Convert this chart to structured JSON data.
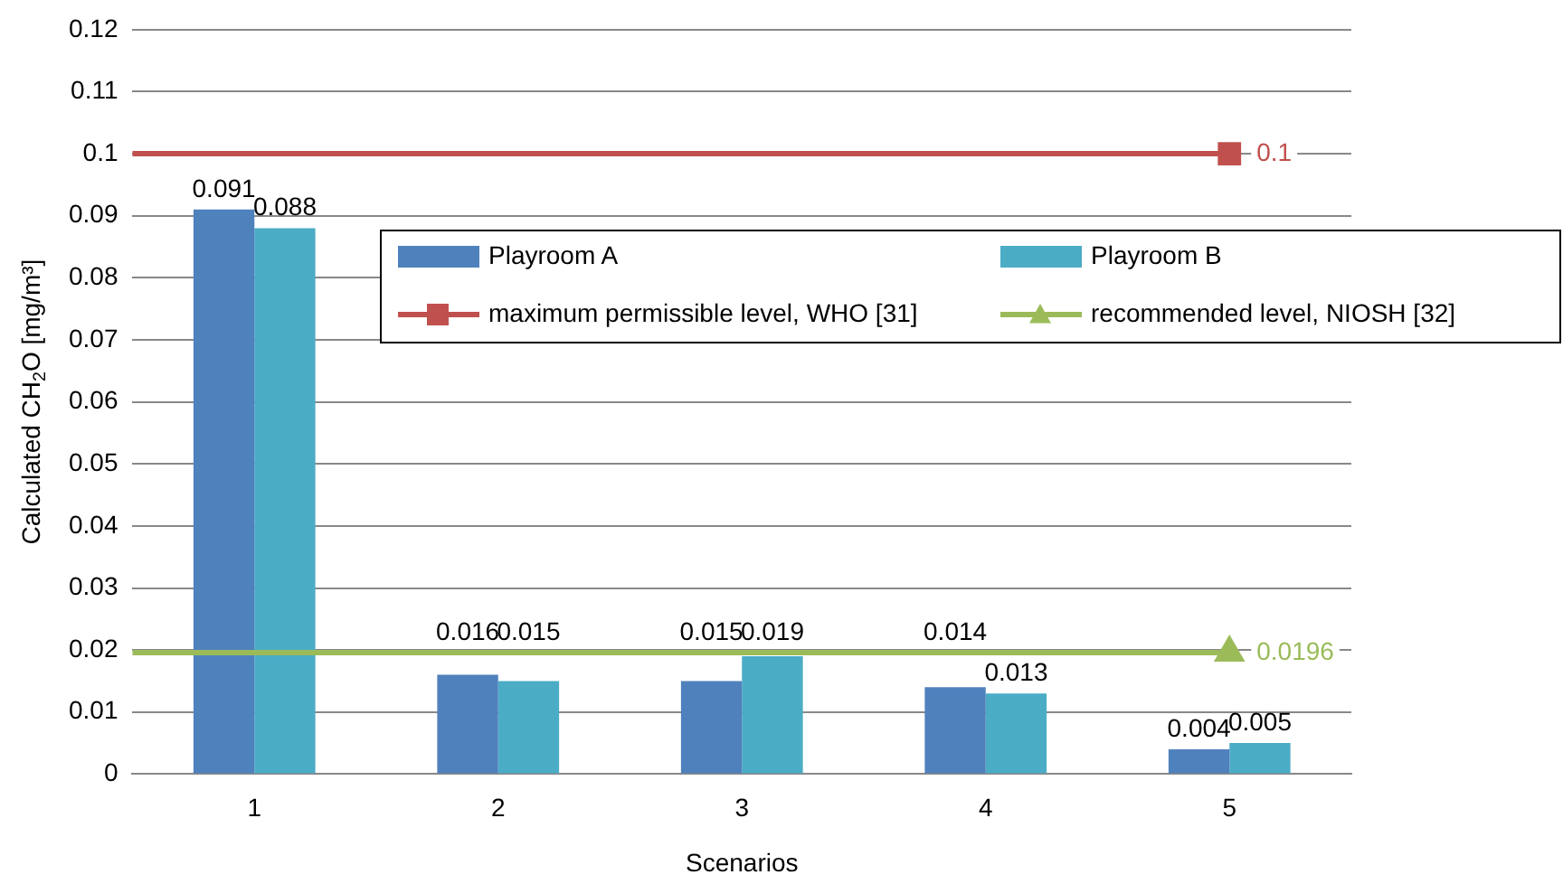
{
  "chart_data": {
    "type": "bar",
    "xlabel": "Scenarios",
    "ylabel": "Calculated CH$_{2}$O [mg/m³]",
    "categories": [
      "1",
      "2",
      "3",
      "4",
      "5"
    ],
    "series": [
      {
        "name": "Playroom A",
        "color": "#4f81bd",
        "values": [
          0.091,
          0.016,
          0.015,
          0.014,
          0.004
        ]
      },
      {
        "name": "Playroom B",
        "color": "#4bacc6",
        "values": [
          0.088,
          0.015,
          0.019,
          0.013,
          0.005
        ]
      },
      {
        "type": "line",
        "name": "maximum permissible level, WHO [31]",
        "color": "#c0504d",
        "marker": "square",
        "values": [
          null,
          null,
          null,
          null,
          0.1
        ],
        "value_labels": [
          null,
          null,
          null,
          null,
          "0.1"
        ]
      },
      {
        "type": "line",
        "name": "recommended level, NIOSH [32]",
        "color": "#9bbb59",
        "marker": "triangle",
        "values": [
          null,
          null,
          null,
          null,
          0.0196
        ],
        "value_labels": [
          null,
          null,
          null,
          null,
          "0.0196"
        ]
      }
    ],
    "ref_lines": [
      {
        "axis": "y",
        "value": 0.1,
        "color": "#c0504d"
      },
      {
        "axis": "y",
        "value": 0.0196,
        "color": "#9bbb59"
      }
    ],
    "ylim": [
      0,
      0.12
    ],
    "yticks": [
      0,
      0.01,
      0.02,
      0.03,
      0.04,
      0.05,
      0.06,
      0.07,
      0.08,
      0.09,
      0.1,
      0.11,
      0.12
    ],
    "grid": "y",
    "legend": "top right",
    "data_labels": true
  }
}
